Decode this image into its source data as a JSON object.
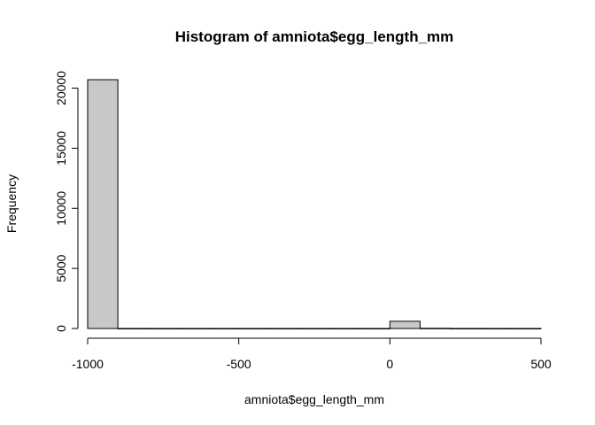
{
  "chart_data": {
    "type": "bar",
    "title": "Histogram of amniota$egg_length_mm",
    "xlabel": "amniota$egg_length_mm",
    "ylabel": "Frequency",
    "bin_edges": [
      -1000,
      -900,
      -800,
      -700,
      -600,
      -500,
      -400,
      -300,
      -200,
      -100,
      0,
      100,
      200,
      300,
      400,
      500
    ],
    "values": [
      20700,
      5,
      3,
      3,
      3,
      3,
      3,
      3,
      3,
      3,
      600,
      20,
      5,
      3,
      3
    ],
    "xlim": [
      -1000,
      500
    ],
    "ylim": [
      0,
      20700
    ],
    "xticks": [
      -1000,
      -500,
      0,
      500
    ],
    "yticks": [
      0,
      5000,
      10000,
      15000,
      20000
    ],
    "bar_color": "#c8c8c8",
    "grid": false
  }
}
